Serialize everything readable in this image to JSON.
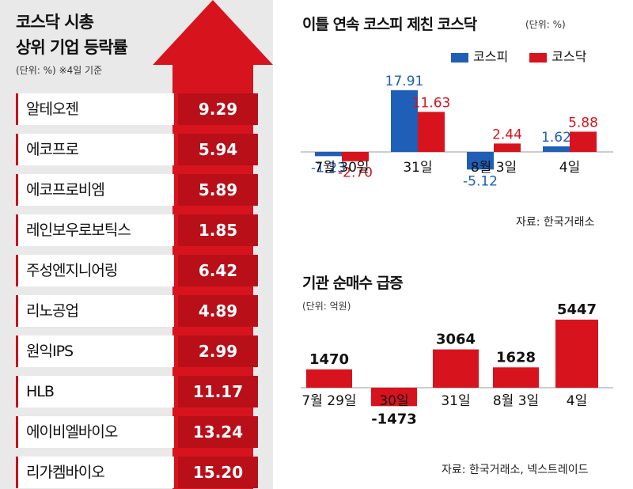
{
  "left": {
    "title_line1": "코스닥 시총",
    "title_line2": "상위 기업 등락률",
    "unit": "(단위: %)  ※4일 기준",
    "items": [
      {
        "name": "알테오젠",
        "value": "9.29"
      },
      {
        "name": "에코프로",
        "value": "5.94"
      },
      {
        "name": "에코프로비엠",
        "value": "5.89"
      },
      {
        "name": "레인보우로보틱스",
        "value": "1.85"
      },
      {
        "name": "주성엔지니어링",
        "value": "6.42"
      },
      {
        "name": "리노공업",
        "value": "4.89"
      },
      {
        "name": "원익IPS",
        "value": "2.99"
      },
      {
        "name": "HLB",
        "value": "11.17"
      },
      {
        "name": "에이비엘바이오",
        "value": "13.24"
      },
      {
        "name": "리가켐바이오",
        "value": "15.20"
      }
    ]
  },
  "chart_data": [
    {
      "type": "bar",
      "title": "이틀 연속 코스피 제친 코스닥",
      "unit": "(단위: %)",
      "categories": [
        "7월 30일",
        "31일",
        "8월 3일",
        "4일"
      ],
      "series": [
        {
          "name": "코스피",
          "color": "#1f5fb8",
          "values": [
            -1.23,
            17.91,
            -5.12,
            1.62
          ],
          "labels": [
            "-1.23",
            "17.91",
            "-5.12",
            "1.62"
          ]
        },
        {
          "name": "코스닥",
          "color": "#d7141e",
          "values": [
            -2.7,
            11.63,
            2.44,
            5.88
          ],
          "labels": [
            "-2.70",
            "11.63",
            "2.44",
            "5.88"
          ]
        }
      ],
      "source": "자료: 한국거래소"
    },
    {
      "type": "bar",
      "title": "기관 순매수 급증",
      "unit": "(단위: 억원)",
      "categories": [
        "7월 29일",
        "30일",
        "31일",
        "8월 3일",
        "4일"
      ],
      "series": [
        {
          "color": "#d7141e",
          "values": [
            1470,
            -1473,
            3064,
            1628,
            5447
          ],
          "labels": [
            "1470",
            "-1473",
            "3064",
            "1628",
            "5447"
          ]
        }
      ],
      "source": "자료: 한국거래소, 넥스트레이드"
    }
  ]
}
